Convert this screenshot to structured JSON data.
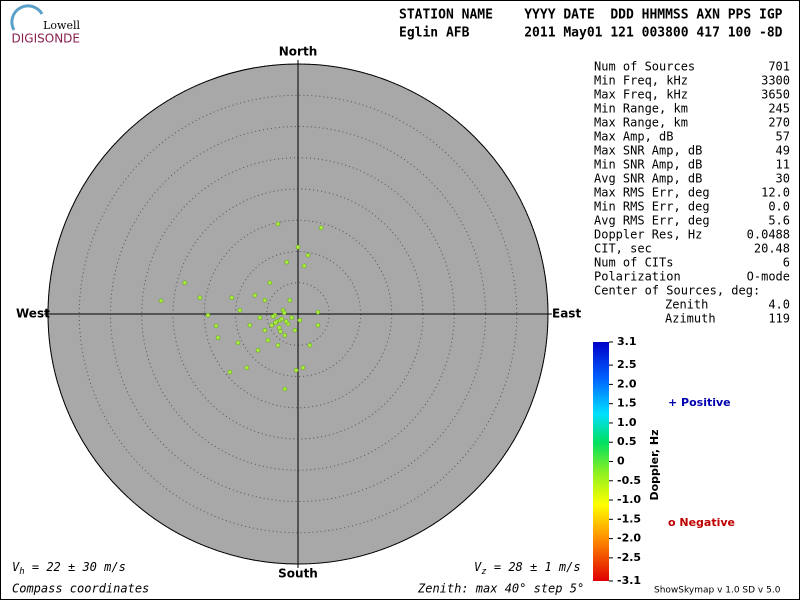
{
  "logo": {
    "top": "Lowell",
    "name": "DIGISONDE"
  },
  "header": {
    "line1": "STATION NAME    YYYY DATE  DDD HHMMSS AXN PPS IGP",
    "line2": "Eglin AFB       2011 May01 121 003800 417 100 -8D"
  },
  "stats": {
    "rows": [
      [
        "Num of Sources",
        "701"
      ],
      [
        "Min Freq, kHz",
        "3300"
      ],
      [
        "Max Freq, kHz",
        "3650"
      ],
      [
        "Min Range, km",
        "245"
      ],
      [
        "Max Range, km",
        "270"
      ],
      [
        "Max Amp, dB",
        "57"
      ],
      [
        "Max SNR Amp, dB",
        "49"
      ],
      [
        "Min SNR Amp, dB",
        "11"
      ],
      [
        "Avg SNR Amp, dB",
        "30"
      ],
      [
        "Max RMS Err, deg",
        "12.0"
      ],
      [
        "Min RMS Err, deg",
        "0.0"
      ],
      [
        "Avg RMS Err, deg",
        "5.6"
      ],
      [
        "Doppler Res, Hz",
        "0.0488"
      ],
      [
        "CIT, sec",
        "20.48"
      ],
      [
        "Num of CITs",
        "6"
      ],
      [
        "Polarization",
        "O-mode"
      ],
      [
        "Center of Sources, deg:"
      ]
    ],
    "center": [
      [
        "Zenith",
        "4.0"
      ],
      [
        "Azimuth",
        "119"
      ]
    ]
  },
  "chart_data": {
    "type": "polar-scatter",
    "directions": {
      "north": "North",
      "south": "South",
      "east": "East",
      "west": "West"
    },
    "rlim": [
      0,
      40
    ],
    "rticks": [
      5,
      10,
      15,
      20,
      25,
      30,
      35,
      40
    ],
    "color": "#a6f03c",
    "x": [
      -3.2,
      0,
      3.7,
      1.6,
      1.0,
      -1.8,
      -18.1,
      -21.9,
      -15.7,
      -14.4,
      -13.1,
      -12.8,
      -9.6,
      -10.9,
      -8.2,
      -2.1,
      -0.3,
      0.8,
      3.2,
      3.2,
      1.9,
      -5.3,
      -6.9,
      -4.5,
      -1.3,
      -2.9,
      -4.2,
      -5.3,
      -2.1,
      -0.5,
      -3.7,
      -2.4,
      -6.1,
      -4.8,
      -7.7,
      -9.3,
      -10.6,
      -6.4,
      -3.2,
      0.3,
      -3.4,
      -2.6,
      -1.6,
      -4.0,
      -3.0,
      -2.2,
      -1.0,
      -3.6,
      -2.8,
      -1.9
    ],
    "y": [
      14.4,
      10.7,
      13.8,
      9.4,
      7.7,
      8.3,
      5.0,
      2.1,
      2.6,
      -0.2,
      -1.9,
      -3.8,
      -4.6,
      -9.3,
      -8.6,
      -12.0,
      -9.0,
      -8.6,
      -1.8,
      0.3,
      -5.0,
      2.2,
      3.0,
      5.0,
      2.2,
      -1.0,
      -1.8,
      -2.6,
      -3.4,
      -2.6,
      -0.2,
      0.6,
      -0.6,
      -4.2,
      -1.8,
      0.6,
      2.6,
      -5.8,
      -5.0,
      -1.0,
      -1.2,
      -0.8,
      -1.6,
      -0.4,
      -2.2,
      0.2,
      -0.6,
      -1.4,
      -2.8,
      -1.2
    ],
    "vh": [
      "V",
      "h",
      " = 22 ± 30 m/s"
    ],
    "vz": [
      "V",
      "z",
      " = 28 ± 1 m/s"
    ],
    "coords": "Compass coordinates",
    "zenith": "Zenith: max 40°  step 5°"
  },
  "colorbar": {
    "label": "Doppler, Hz",
    "lim": [
      -3.1,
      3.1
    ],
    "ticks": [
      3.1,
      2.5,
      {
        "value": 2.0,
        "label": "2.0"
      },
      1.5,
      {
        "value": 1.0,
        "label": "1.0"
      },
      0.5,
      0,
      -0.5,
      {
        "value": -1.0,
        "label": "-1.0"
      },
      -1.5,
      {
        "value": -2.0,
        "label": "-2.0"
      },
      -2.5,
      -3.1
    ],
    "positive": "+ Positive",
    "negative": "o Negative"
  },
  "footer": "ShowSkymap v 1.0  SD v 5.0"
}
